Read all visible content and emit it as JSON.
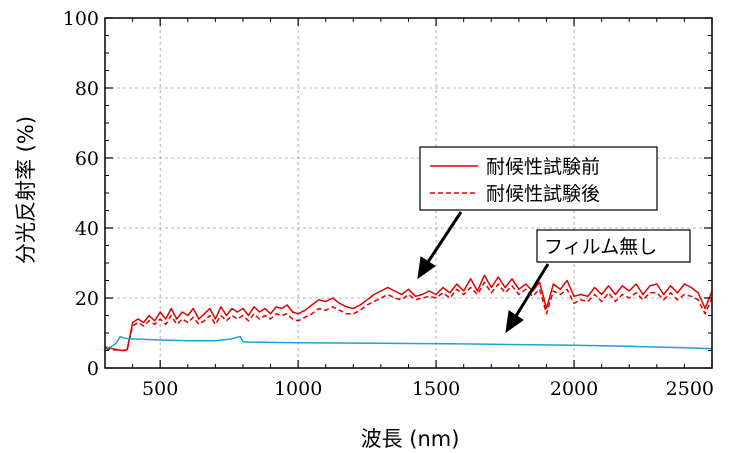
{
  "chart_data": {
    "type": "line",
    "title": "",
    "xlabel": "波長 (nm)",
    "ylabel": "分光反射率 (%)",
    "xlim": [
      300,
      2500
    ],
    "ylim": [
      0,
      100
    ],
    "xticks": [
      500,
      1000,
      1500,
      2000,
      2500
    ],
    "yticks": [
      0,
      20,
      40,
      60,
      80,
      100
    ],
    "xtick_labels": [
      "500",
      "1000",
      "1500",
      "2000",
      "2500"
    ],
    "ytick_labels": [
      "0",
      "20",
      "40",
      "60",
      "80",
      "100"
    ],
    "grid": true,
    "legend": {
      "placement": "center-right",
      "entries": [
        "耐候性試験前",
        "耐候性試験後"
      ]
    },
    "annotation": "フィルム無し",
    "series": [
      {
        "name": "耐候性試験前",
        "color": "#e00000",
        "linestyle": "solid",
        "x": [
          300,
          330,
          360,
          380,
          390,
          400,
          420,
          440,
          460,
          480,
          500,
          520,
          540,
          560,
          580,
          600,
          620,
          640,
          660,
          680,
          700,
          720,
          740,
          760,
          780,
          800,
          820,
          840,
          860,
          880,
          900,
          920,
          940,
          960,
          980,
          1000,
          1025,
          1050,
          1075,
          1100,
          1125,
          1150,
          1175,
          1200,
          1225,
          1250,
          1275,
          1300,
          1325,
          1350,
          1375,
          1400,
          1425,
          1450,
          1475,
          1500,
          1525,
          1550,
          1575,
          1600,
          1625,
          1650,
          1675,
          1700,
          1725,
          1750,
          1775,
          1800,
          1825,
          1850,
          1875,
          1900,
          1925,
          1950,
          1975,
          2000,
          2025,
          2050,
          2075,
          2100,
          2125,
          2150,
          2175,
          2200,
          2225,
          2250,
          2275,
          2300,
          2325,
          2350,
          2375,
          2400,
          2425,
          2450,
          2475,
          2500
        ],
        "values": [
          6,
          5.5,
          5,
          5.2,
          9,
          13,
          14,
          13,
          15,
          13.5,
          16,
          14,
          17,
          14,
          16,
          15,
          17,
          14,
          15.5,
          17,
          14,
          17.5,
          15,
          17,
          16,
          17,
          15,
          17.5,
          16,
          17,
          15.5,
          17.5,
          17,
          18,
          16,
          15.5,
          16.5,
          18,
          19.5,
          19,
          20,
          18.5,
          17.5,
          17,
          18,
          19.5,
          21,
          22,
          23,
          22,
          21,
          22.5,
          20.5,
          21,
          22,
          21,
          23,
          21.5,
          24,
          22,
          25.5,
          22,
          26.5,
          23,
          26,
          23,
          25.5,
          22.5,
          24,
          22,
          24.5,
          17,
          24,
          22.5,
          25,
          20.5,
          21,
          20.5,
          23,
          21,
          23.5,
          21,
          23.5,
          22,
          24,
          21,
          23.5,
          24,
          21,
          23.5,
          21.5,
          24,
          23,
          21.5,
          17,
          22
        ]
      },
      {
        "name": "耐候性試験後",
        "color": "#e00000",
        "linestyle": "dashed",
        "x": [
          300,
          330,
          360,
          380,
          390,
          400,
          420,
          440,
          460,
          480,
          500,
          520,
          540,
          560,
          580,
          600,
          620,
          640,
          660,
          680,
          700,
          720,
          740,
          760,
          780,
          800,
          820,
          840,
          860,
          880,
          900,
          920,
          940,
          960,
          980,
          1000,
          1025,
          1050,
          1075,
          1100,
          1125,
          1150,
          1175,
          1200,
          1225,
          1250,
          1275,
          1300,
          1325,
          1350,
          1375,
          1400,
          1425,
          1450,
          1475,
          1500,
          1525,
          1550,
          1575,
          1600,
          1625,
          1650,
          1675,
          1700,
          1725,
          1750,
          1775,
          1800,
          1825,
          1850,
          1875,
          1900,
          1925,
          1950,
          1975,
          2000,
          2025,
          2050,
          2075,
          2100,
          2125,
          2150,
          2175,
          2200,
          2225,
          2250,
          2275,
          2300,
          2325,
          2350,
          2375,
          2400,
          2425,
          2450,
          2475,
          2500
        ],
        "values": [
          5.5,
          5.2,
          5,
          5,
          8.5,
          12,
          13,
          12,
          13.5,
          12.5,
          14,
          12.5,
          15,
          12.5,
          14,
          13,
          14.5,
          12.5,
          13.5,
          15,
          12.5,
          15,
          13.5,
          15,
          14,
          15,
          13.5,
          15.5,
          14,
          15,
          14,
          15.5,
          15,
          15.5,
          14,
          13.5,
          14.5,
          15.5,
          17,
          16.5,
          17.5,
          16.5,
          15.5,
          15.5,
          16.5,
          18,
          19,
          20,
          21,
          20,
          19.5,
          21,
          19.5,
          20,
          20.5,
          20,
          21.5,
          20,
          22.5,
          21,
          23,
          21,
          24.5,
          21.5,
          24,
          21.5,
          23.5,
          21,
          22.5,
          20.5,
          22.5,
          15.5,
          22,
          21,
          22.5,
          18.5,
          19.5,
          19,
          21,
          19,
          21.5,
          19,
          21,
          20,
          21.5,
          19.5,
          21.5,
          21.5,
          19.5,
          21.5,
          19.5,
          21,
          20.5,
          19.5,
          15.5,
          20
        ]
      },
      {
        "name": "フィルム無し",
        "color": "#1aa3dc",
        "linestyle": "solid",
        "x": [
          300,
          320,
          340,
          355,
          370,
          400,
          500,
          600,
          700,
          760,
          780,
          790,
          800,
          820,
          1000,
          1200,
          1400,
          1600,
          1800,
          2000,
          2200,
          2400,
          2500
        ],
        "values": [
          5.5,
          6,
          7,
          9,
          8.5,
          8.3,
          8,
          7.8,
          7.8,
          8.3,
          8.8,
          9,
          7.5,
          7.4,
          7.2,
          7.1,
          7,
          6.9,
          6.7,
          6.5,
          6.2,
          5.8,
          5.5
        ]
      }
    ]
  }
}
